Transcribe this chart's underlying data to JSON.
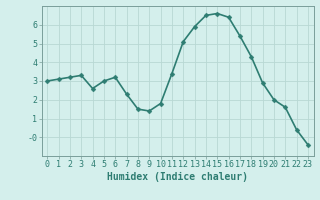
{
  "x": [
    0,
    1,
    2,
    3,
    4,
    5,
    6,
    7,
    8,
    9,
    10,
    11,
    12,
    13,
    14,
    15,
    16,
    17,
    18,
    19,
    20,
    21,
    22,
    23
  ],
  "y": [
    3.0,
    3.1,
    3.2,
    3.3,
    2.6,
    3.0,
    3.2,
    2.3,
    1.5,
    1.4,
    1.8,
    3.4,
    5.1,
    5.9,
    6.5,
    6.6,
    6.4,
    5.4,
    4.3,
    2.9,
    2.0,
    1.6,
    0.4,
    -0.4
  ],
  "xlabel": "Humidex (Indice chaleur)",
  "xlim": [
    -0.5,
    23.5
  ],
  "ylim": [
    -1.0,
    7.0
  ],
  "yticks": [
    0,
    1,
    2,
    3,
    4,
    5,
    6
  ],
  "ytick_labels": [
    "-0",
    "1",
    "2",
    "3",
    "4",
    "5",
    "6"
  ],
  "xticks": [
    0,
    1,
    2,
    3,
    4,
    5,
    6,
    7,
    8,
    9,
    10,
    11,
    12,
    13,
    14,
    15,
    16,
    17,
    18,
    19,
    20,
    21,
    22,
    23
  ],
  "bg_color": "#d4efec",
  "grid_color": "#b8d8d4",
  "line_color": "#2e7d72",
  "marker_color": "#2e7d72",
  "axis_color": "#7a9e9a",
  "label_color": "#2e7d72",
  "xlabel_fontsize": 7,
  "tick_fontsize": 6,
  "line_width": 1.2,
  "marker_size": 2.5
}
